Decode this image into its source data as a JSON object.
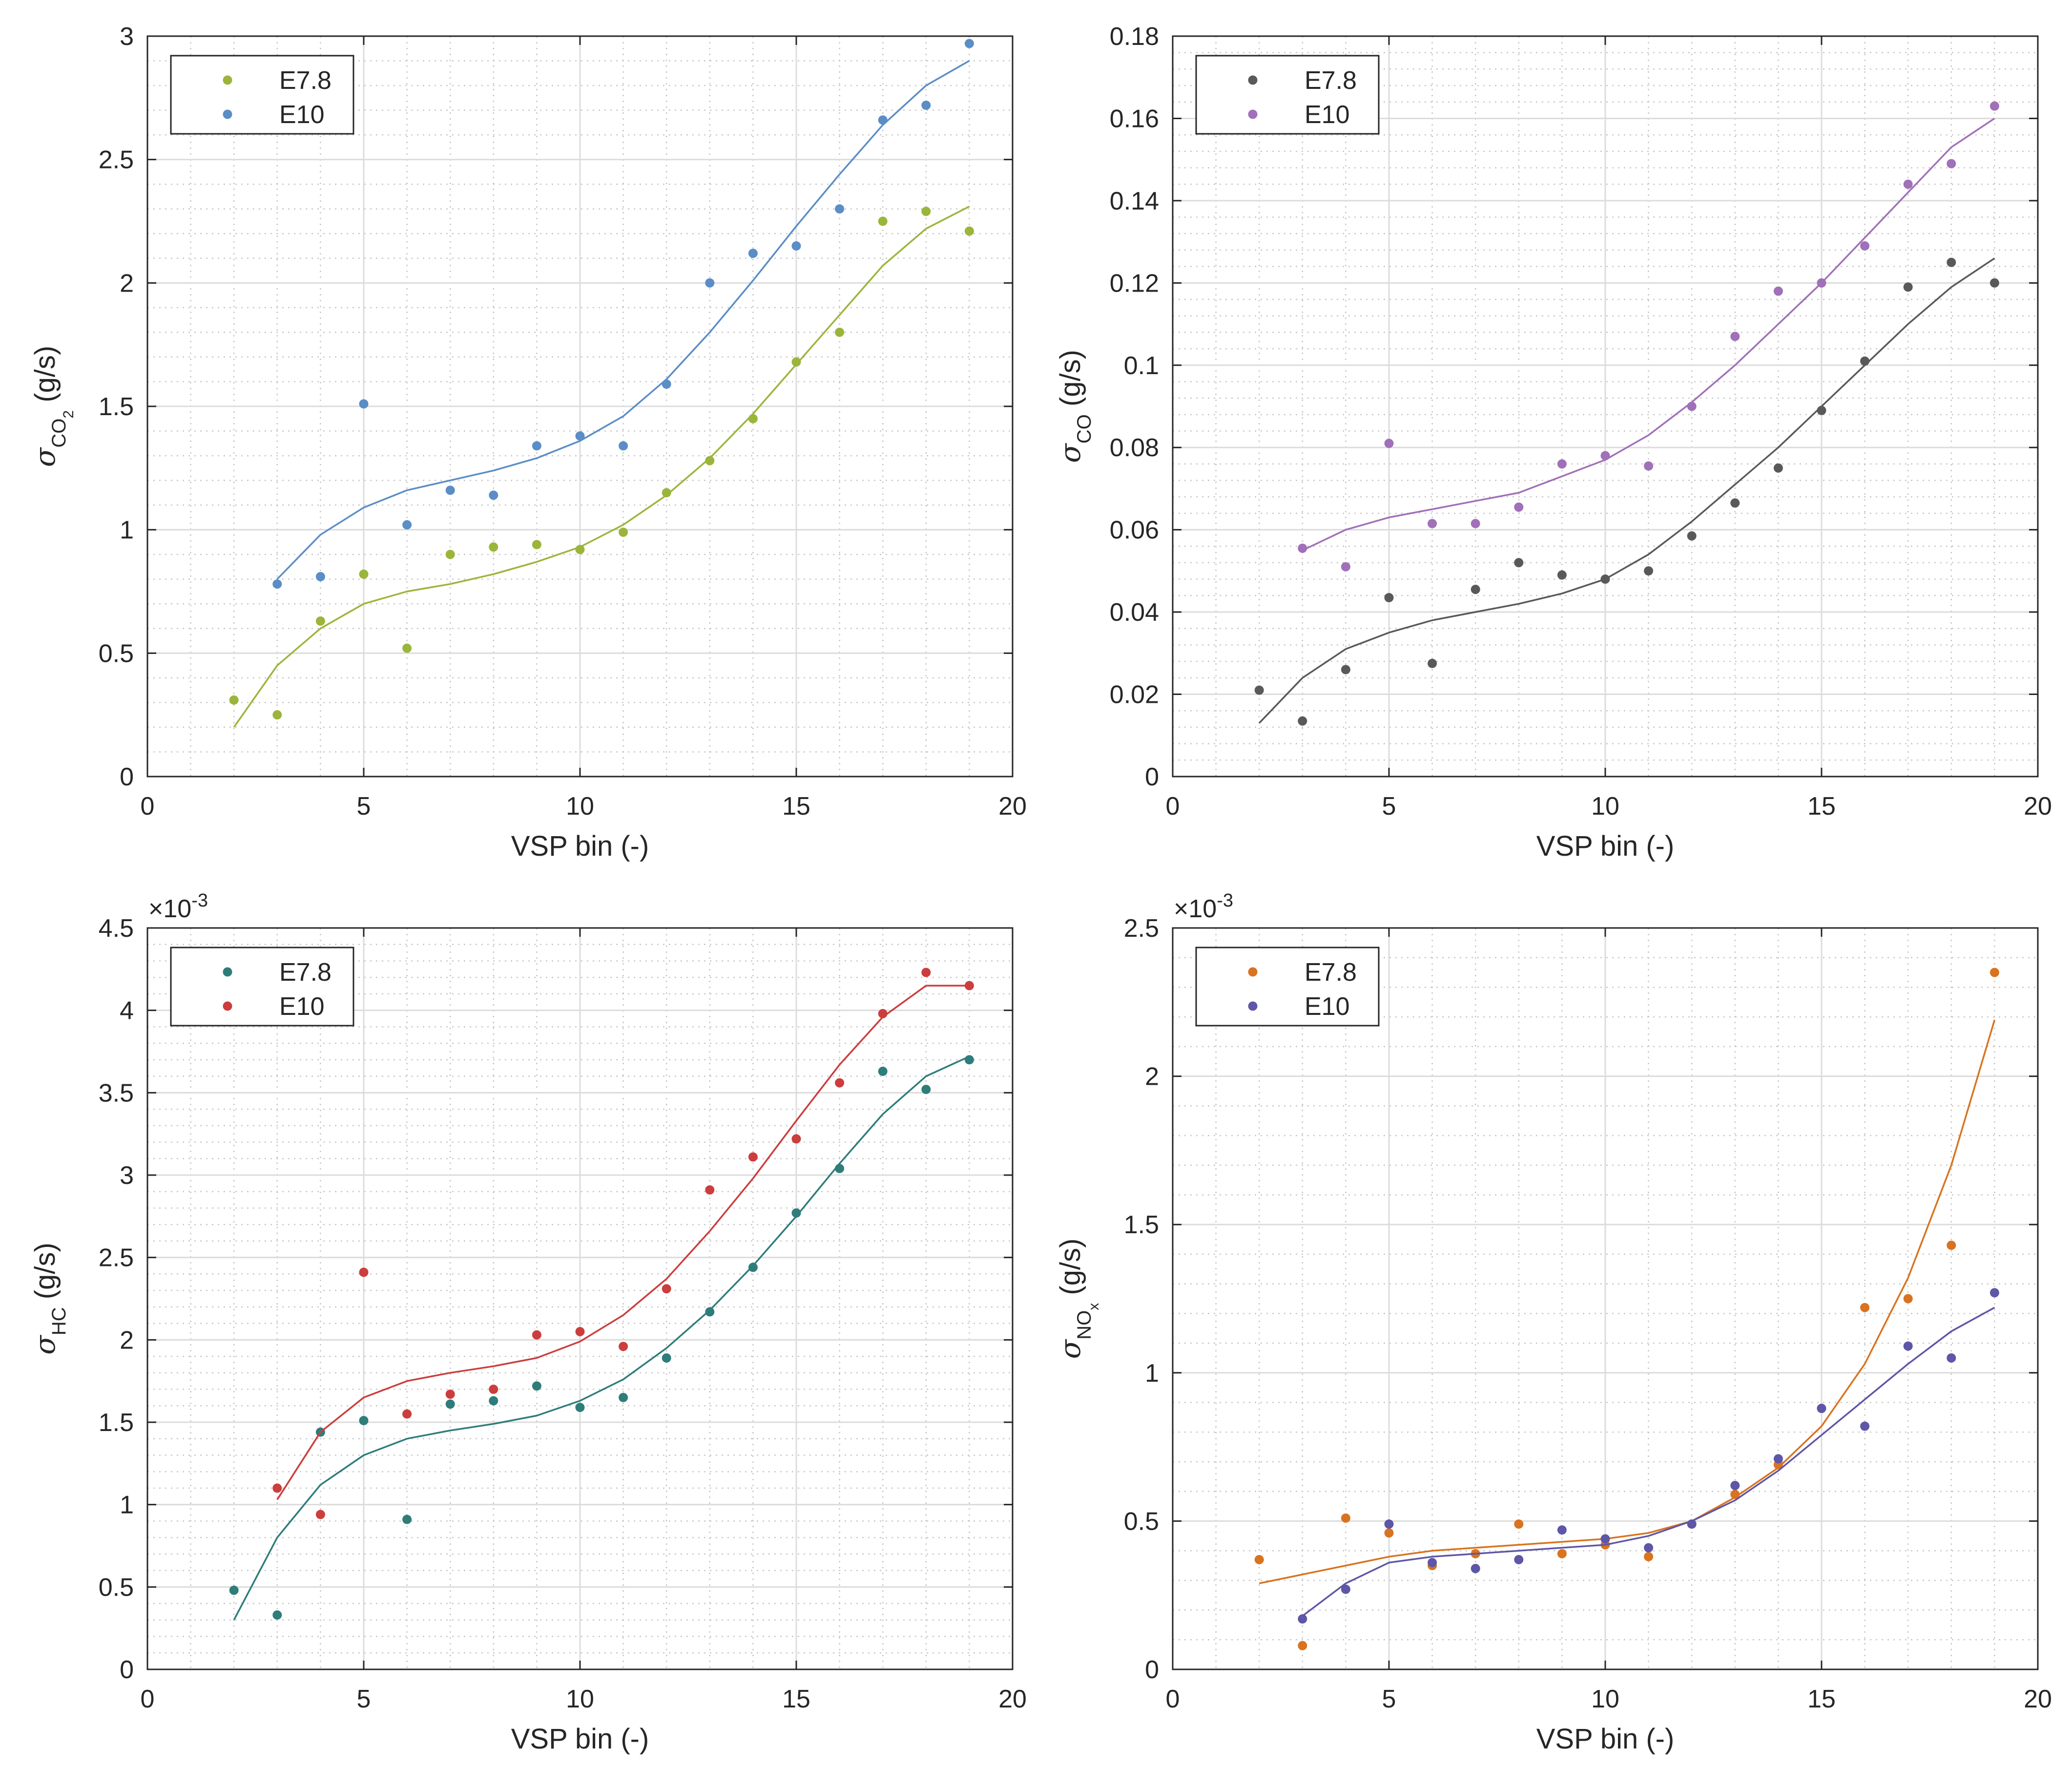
{
  "chart_data": [
    {
      "type": "scatter",
      "ylabel": {
        "symbol": "σ",
        "sub": "CO",
        "subsub": "2",
        "unit": " (g/s)"
      },
      "xlabel": "VSP bin (-)",
      "xlim": [
        0,
        20
      ],
      "ylim": [
        0,
        3
      ],
      "xticks": [
        0,
        5,
        10,
        15,
        20
      ],
      "yticks": [
        0,
        0.5,
        1,
        1.5,
        2,
        2.5,
        3
      ],
      "ytick_labels": [
        "0",
        "0.5",
        "1",
        "1.5",
        "2",
        "2.5",
        "3"
      ],
      "exponent_label": null,
      "grid": true,
      "minor_grid": true,
      "legend_position": "top-left",
      "series": [
        {
          "name": "E7.8",
          "color": "#9BB53A",
          "x": [
            2,
            3,
            4,
            5,
            6,
            7,
            8,
            9,
            10,
            11,
            12,
            13,
            14,
            15,
            16,
            17,
            18,
            19
          ],
          "y": [
            0.31,
            0.25,
            0.63,
            0.82,
            0.52,
            0.9,
            0.93,
            0.94,
            0.92,
            0.99,
            1.15,
            1.28,
            1.45,
            1.68,
            1.8,
            2.25,
            2.29,
            2.21
          ],
          "fit": [
            0.2,
            0.45,
            0.6,
            0.7,
            0.75,
            0.78,
            0.82,
            0.87,
            0.93,
            1.02,
            1.14,
            1.29,
            1.47,
            1.67,
            1.87,
            2.07,
            2.22,
            2.31
          ]
        },
        {
          "name": "E10",
          "color": "#5B8DC6",
          "x": [
            3,
            4,
            5,
            6,
            7,
            8,
            9,
            10,
            11,
            12,
            13,
            14,
            15,
            16,
            17,
            18,
            19
          ],
          "y": [
            0.78,
            0.81,
            1.51,
            1.02,
            1.16,
            1.14,
            1.34,
            1.38,
            1.34,
            1.59,
            2.0,
            2.12,
            2.15,
            2.3,
            2.66,
            2.72,
            2.97
          ],
          "fit": [
            0.8,
            0.98,
            1.09,
            1.16,
            1.2,
            1.24,
            1.29,
            1.36,
            1.46,
            1.61,
            1.8,
            2.01,
            2.23,
            2.44,
            2.64,
            2.8,
            2.9
          ]
        }
      ]
    },
    {
      "type": "scatter",
      "ylabel": {
        "symbol": "σ",
        "sub": "CO",
        "subsub": "",
        "unit": " (g/s)"
      },
      "xlabel": "VSP bin (-)",
      "xlim": [
        0,
        20
      ],
      "ylim": [
        0,
        0.18
      ],
      "xticks": [
        0,
        5,
        10,
        15,
        20
      ],
      "yticks": [
        0,
        0.02,
        0.04,
        0.06,
        0.08,
        0.1,
        0.12,
        0.14,
        0.16,
        0.18
      ],
      "ytick_labels": [
        "0",
        "0.02",
        "0.04",
        "0.06",
        "0.08",
        "0.1",
        "0.12",
        "0.14",
        "0.16",
        "0.18"
      ],
      "exponent_label": null,
      "grid": true,
      "minor_grid": true,
      "legend_position": "top-left",
      "series": [
        {
          "name": "E7.8",
          "color": "#595959",
          "x": [
            2,
            3,
            4,
            5,
            6,
            7,
            8,
            9,
            10,
            11,
            12,
            13,
            14,
            15,
            16,
            17,
            18,
            19
          ],
          "y": [
            0.021,
            0.0135,
            0.026,
            0.0435,
            0.0275,
            0.0455,
            0.052,
            0.049,
            0.048,
            0.05,
            0.0585,
            0.0665,
            0.075,
            0.089,
            0.101,
            0.119,
            0.125,
            0.12
          ],
          "fit": [
            0.013,
            0.024,
            0.031,
            0.035,
            0.038,
            0.04,
            0.042,
            0.0445,
            0.048,
            0.054,
            0.062,
            0.071,
            0.08,
            0.09,
            0.1,
            0.11,
            0.119,
            0.126
          ]
        },
        {
          "name": "E10",
          "color": "#A070B8",
          "x": [
            3,
            4,
            5,
            6,
            7,
            8,
            9,
            10,
            11,
            12,
            13,
            14,
            15,
            16,
            17,
            18,
            19
          ],
          "y": [
            0.0555,
            0.051,
            0.081,
            0.0615,
            0.0615,
            0.0655,
            0.076,
            0.078,
            0.0755,
            0.09,
            0.107,
            0.118,
            0.12,
            0.129,
            0.144,
            0.149,
            0.163
          ],
          "fit": [
            0.055,
            0.06,
            0.063,
            0.065,
            0.067,
            0.069,
            0.073,
            0.077,
            0.083,
            0.091,
            0.1,
            0.11,
            0.12,
            0.131,
            0.142,
            0.153,
            0.16
          ]
        }
      ]
    },
    {
      "type": "scatter",
      "ylabel": {
        "symbol": "σ",
        "sub": "HC",
        "subsub": "",
        "unit": " (g/s)"
      },
      "xlabel": "VSP bin (-)",
      "xlim": [
        0,
        20
      ],
      "ylim": [
        0,
        4.5
      ],
      "xticks": [
        0,
        5,
        10,
        15,
        20
      ],
      "yticks": [
        0,
        0.5,
        1,
        1.5,
        2,
        2.5,
        3,
        3.5,
        4,
        4.5
      ],
      "ytick_labels": [
        "0",
        "0.5",
        "1",
        "1.5",
        "2",
        "2.5",
        "3",
        "3.5",
        "4",
        "4.5"
      ],
      "exponent_label": {
        "base": "×10",
        "power": "-3"
      },
      "grid": true,
      "minor_grid": true,
      "legend_position": "top-left",
      "series": [
        {
          "name": "E7.8",
          "color": "#2E7D7A",
          "x": [
            2,
            3,
            4,
            5,
            6,
            7,
            8,
            9,
            10,
            11,
            12,
            13,
            14,
            15,
            16,
            17,
            18,
            19
          ],
          "y": [
            0.48,
            0.33,
            1.44,
            1.51,
            0.91,
            1.61,
            1.63,
            1.72,
            1.59,
            1.65,
            1.89,
            2.17,
            2.44,
            2.77,
            3.04,
            3.63,
            3.52,
            3.7
          ],
          "fit": [
            0.3,
            0.8,
            1.12,
            1.3,
            1.4,
            1.45,
            1.49,
            1.54,
            1.63,
            1.76,
            1.95,
            2.18,
            2.45,
            2.75,
            3.07,
            3.37,
            3.6,
            3.72
          ]
        },
        {
          "name": "E10",
          "color": "#CC3D3D",
          "x": [
            3,
            4,
            5,
            6,
            7,
            8,
            9,
            10,
            11,
            12,
            13,
            14,
            15,
            16,
            17,
            18,
            19
          ],
          "y": [
            1.1,
            0.94,
            2.41,
            1.55,
            1.67,
            1.7,
            2.03,
            2.05,
            1.96,
            2.31,
            2.91,
            3.11,
            3.22,
            3.56,
            3.98,
            4.23,
            4.15
          ],
          "fit": [
            1.03,
            1.44,
            1.65,
            1.75,
            1.8,
            1.84,
            1.89,
            1.99,
            2.15,
            2.37,
            2.66,
            2.98,
            3.33,
            3.67,
            3.96,
            4.15,
            4.15
          ]
        }
      ]
    },
    {
      "type": "scatter",
      "ylabel": {
        "symbol": "σ",
        "sub": "NO",
        "subsub": "x",
        "unit": " (g/s)"
      },
      "xlabel": "VSP bin (-)",
      "xlim": [
        0,
        20
      ],
      "ylim": [
        0,
        2.5
      ],
      "xticks": [
        0,
        5,
        10,
        15,
        20
      ],
      "yticks": [
        0,
        0.5,
        1,
        1.5,
        2,
        2.5
      ],
      "ytick_labels": [
        "0",
        "0.5",
        "1",
        "1.5",
        "2",
        "2.5"
      ],
      "exponent_label": {
        "base": "×10",
        "power": "-3"
      },
      "grid": true,
      "minor_grid": true,
      "legend_position": "top-left",
      "series": [
        {
          "name": "E7.8",
          "color": "#D9731E",
          "x": [
            2,
            3,
            4,
            5,
            6,
            7,
            8,
            9,
            10,
            11,
            12,
            13,
            14,
            15,
            16,
            17,
            18,
            19
          ],
          "y": [
            0.37,
            0.08,
            0.51,
            0.46,
            0.35,
            0.39,
            0.49,
            0.39,
            0.42,
            0.38,
            0.49,
            0.59,
            0.69,
            0.88,
            1.22,
            1.25,
            1.43,
            2.35
          ],
          "fit": [
            0.29,
            0.32,
            0.35,
            0.38,
            0.4,
            0.41,
            0.42,
            0.43,
            0.44,
            0.46,
            0.5,
            0.58,
            0.68,
            0.82,
            1.03,
            1.32,
            1.7,
            2.19
          ]
        },
        {
          "name": "E10",
          "color": "#5E56A6",
          "x": [
            3,
            4,
            5,
            6,
            7,
            8,
            9,
            10,
            11,
            12,
            13,
            14,
            15,
            16,
            17,
            18,
            19
          ],
          "y": [
            0.17,
            0.27,
            0.49,
            0.36,
            0.34,
            0.37,
            0.47,
            0.44,
            0.41,
            0.49,
            0.62,
            0.71,
            0.88,
            0.82,
            1.09,
            1.05,
            1.27
          ],
          "fit": [
            0.18,
            0.29,
            0.36,
            0.38,
            0.39,
            0.4,
            0.41,
            0.42,
            0.45,
            0.5,
            0.57,
            0.67,
            0.79,
            0.91,
            1.03,
            1.14,
            1.22
          ]
        }
      ]
    }
  ]
}
